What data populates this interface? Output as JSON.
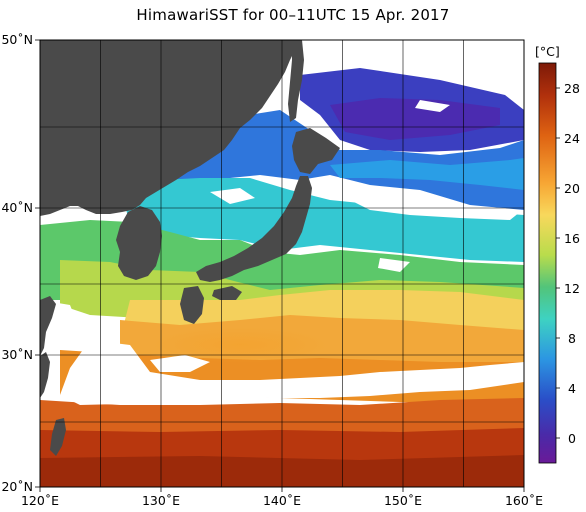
{
  "title": "HimawariSST for 00–11UTC 15 Apr. 2017",
  "colors": {
    "land": "#4a4a4a",
    "missing": "#ffffff",
    "grid": "#000000"
  },
  "map": {
    "lon_range": [
      120,
      160
    ],
    "lat_range": [
      20,
      50
    ],
    "lon_ticks": [
      "120˚E",
      "130˚E",
      "140˚E",
      "150˚E",
      "160˚E"
    ],
    "lat_ticks": [
      "50˚N",
      "40˚N",
      "30˚N",
      "20˚N"
    ]
  },
  "colorbar": {
    "unit": "[°C]",
    "range": [
      -2,
      30
    ],
    "tick_labels": [
      "28",
      "24",
      "20",
      "16",
      "12",
      "8",
      "4",
      "0"
    ]
  }
}
